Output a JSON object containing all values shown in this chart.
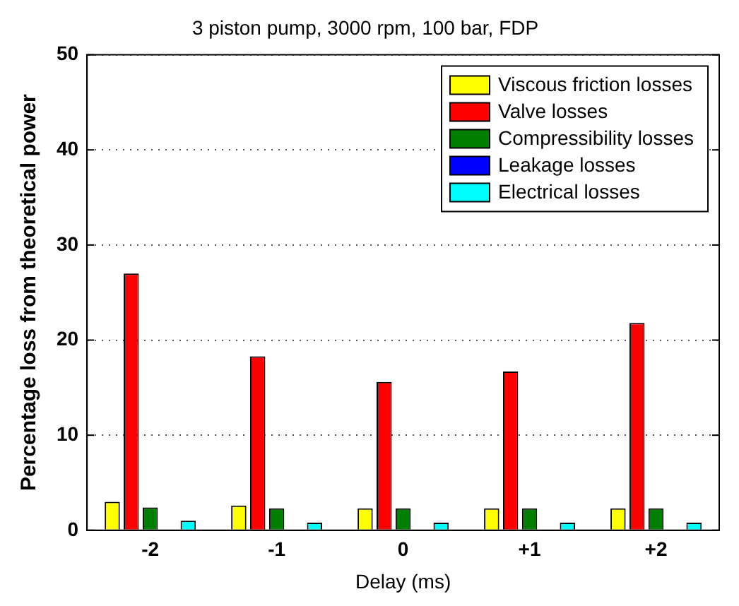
{
  "chart_data": {
    "type": "bar",
    "title": "3 piston pump, 3000 rpm, 100 bar, FDP",
    "xlabel": "Delay (ms)",
    "ylabel": "Percentage loss from theoretical power",
    "categories": [
      "-2",
      "-1",
      "0",
      "+1",
      "+2"
    ],
    "series": [
      {
        "name": "Viscous friction losses",
        "color": "#ffff00",
        "values": [
          3.0,
          2.6,
          2.3,
          2.3,
          2.3
        ]
      },
      {
        "name": "Valve losses",
        "color": "#ff0000",
        "values": [
          27.0,
          18.3,
          15.6,
          16.7,
          21.8
        ]
      },
      {
        "name": "Compressibility losses",
        "color": "#007f00",
        "values": [
          2.4,
          2.3,
          2.3,
          2.3,
          2.3
        ]
      },
      {
        "name": "Leakage losses",
        "color": "#0000ff",
        "values": [
          0,
          0,
          0,
          0,
          0
        ]
      },
      {
        "name": "Electrical losses",
        "color": "#00ffff",
        "values": [
          1.0,
          0.8,
          0.8,
          0.8,
          0.8
        ]
      }
    ],
    "ylim": [
      0,
      50
    ],
    "yticks": [
      0,
      10,
      20,
      30,
      40,
      50
    ],
    "grid": "y",
    "legend": "top right"
  }
}
